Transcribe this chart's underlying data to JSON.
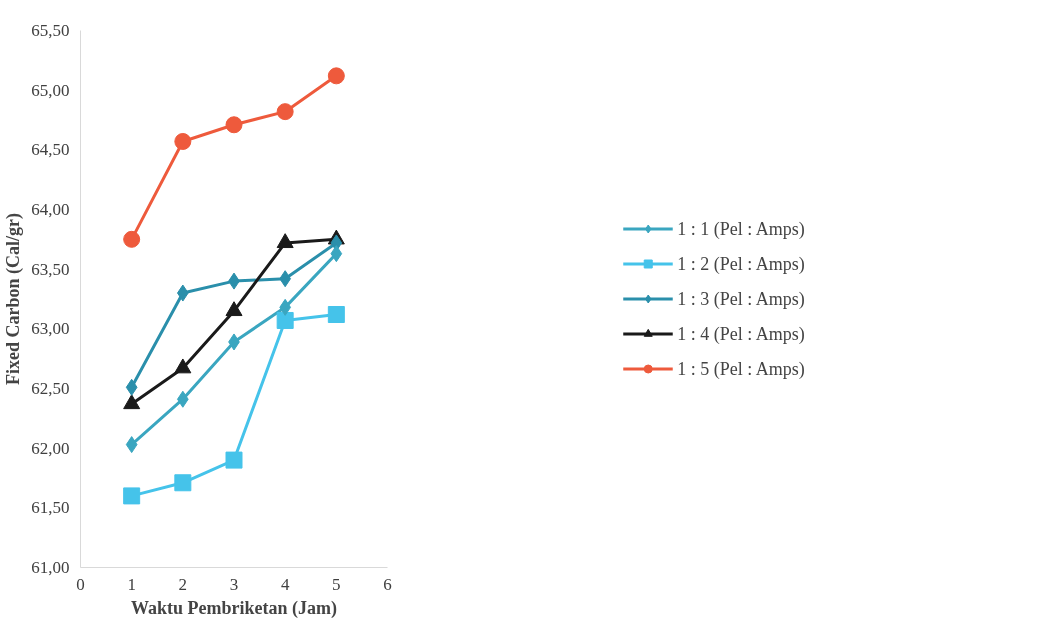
{
  "chart_data": {
    "type": "line",
    "xlabel": "Waktu Pembriketan (Jam)",
    "ylabel": "Fixed Carbon (Cal/gr)",
    "x": [
      1,
      2,
      3,
      4,
      5
    ],
    "series": [
      {
        "name": "1 : 1 (Pel : Amps)",
        "color": "#3aa6c0",
        "marker": "diamond",
        "values": [
          62.03,
          62.41,
          62.89,
          63.18,
          63.63
        ]
      },
      {
        "name": "1 : 2 (Pel : Amps)",
        "color": "#45c3ea",
        "marker": "square",
        "values": [
          61.6,
          61.71,
          61.9,
          63.07,
          63.12
        ]
      },
      {
        "name": "1 : 3 (Pel : Amps)",
        "color": "#2a8fab",
        "marker": "diamond",
        "values": [
          62.51,
          63.3,
          63.4,
          63.42,
          63.72
        ]
      },
      {
        "name": "1 : 4 (Pel : Amps)",
        "color": "#1a1a1a",
        "marker": "triangle",
        "values": [
          62.37,
          62.67,
          63.15,
          63.72,
          63.75
        ]
      },
      {
        "name": "1 : 5 (Pel : Amps)",
        "color": "#ee5a3c",
        "marker": "circle",
        "values": [
          63.75,
          64.57,
          64.71,
          64.82,
          65.12
        ]
      }
    ],
    "xlim": [
      0,
      6
    ],
    "xticks": [
      0,
      1,
      2,
      3,
      4,
      5,
      6
    ],
    "ylim": [
      61,
      65.5
    ],
    "yticks": [
      {
        "value": 61,
        "label": "61,00"
      },
      {
        "value": 61.5,
        "label": "61,50"
      },
      {
        "value": 62,
        "label": "62,00"
      },
      {
        "value": 62.5,
        "label": "62,50"
      },
      {
        "value": 63,
        "label": "63,00"
      },
      {
        "value": 63.5,
        "label": "63,50"
      },
      {
        "value": 64,
        "label": "64,00"
      },
      {
        "value": 64.5,
        "label": "64,50"
      },
      {
        "value": 65,
        "label": "65,00"
      },
      {
        "value": 65.5,
        "label": "65,50"
      }
    ],
    "grid": false,
    "legend": "right"
  }
}
